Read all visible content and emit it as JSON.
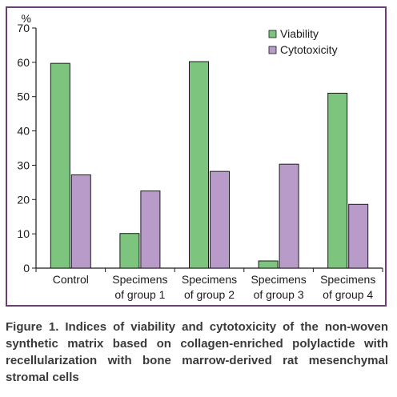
{
  "chart_data": {
    "type": "bar",
    "ylabel": "%",
    "ylim": [
      0,
      70
    ],
    "yticks": [
      0,
      10,
      20,
      30,
      40,
      50,
      60,
      70
    ],
    "grid": false,
    "legend_position": "top-right",
    "categories": [
      [
        "Control"
      ],
      [
        "Specimens",
        "of group 1"
      ],
      [
        "Specimens",
        "of group 2"
      ],
      [
        "Specimens",
        "of group 3"
      ],
      [
        "Specimens",
        "of group 4"
      ]
    ],
    "series": [
      {
        "name": "Viability",
        "color": "#7dc47f",
        "values": [
          59.7,
          10.1,
          60.2,
          2.1,
          51.0
        ]
      },
      {
        "name": "Cytotoxicity",
        "color": "#b89bc9",
        "values": [
          27.2,
          22.5,
          28.2,
          30.3,
          18.6
        ]
      }
    ]
  },
  "caption": "Figure 1. Indices of viability and cytotoxicity of the non-woven synthetic matrix based on collagen-enriched polylactide with recellularization with bone marrow-derived rat mesenchymal stromal cells"
}
